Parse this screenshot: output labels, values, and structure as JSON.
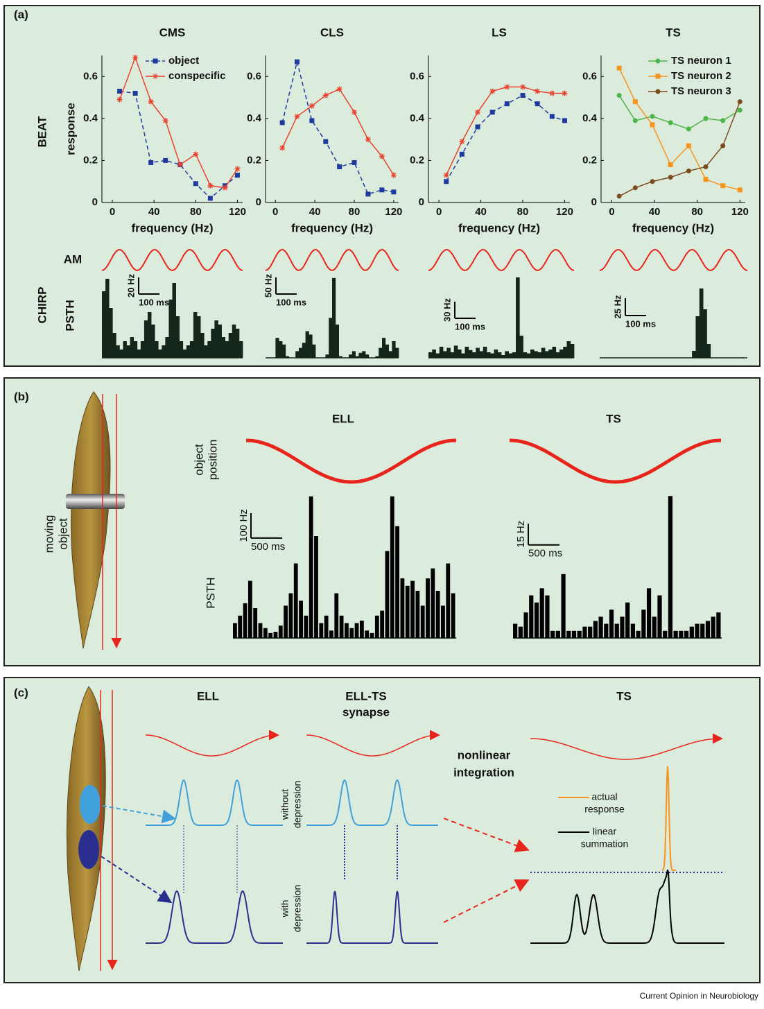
{
  "panels": {
    "a": {
      "label": "(a)",
      "beat": "BEAT",
      "chirp": "CHIRP",
      "am": "AM",
      "psth": "PSTH"
    },
    "b": {
      "label": "(b)",
      "moving_object": [
        "moving",
        "object"
      ],
      "titles": [
        "ELL",
        "TS"
      ],
      "object_position": [
        "object",
        "position"
      ],
      "psth": "PSTH"
    },
    "c": {
      "label": "(c)",
      "ell": "ELL",
      "ell_ts": [
        "ELL-TS",
        "synapse"
      ],
      "ts": "TS",
      "nonlinear": [
        "nonlinear",
        "integration"
      ],
      "without_depression": [
        "without",
        "depression"
      ],
      "with_depression": [
        "with",
        "depression"
      ],
      "actual_response": [
        "actual",
        "response"
      ],
      "linear_summation": [
        "linear",
        "summation"
      ]
    },
    "footer": "Current Opinion in Neurobiology"
  },
  "chart_data": [
    {
      "type": "line",
      "title": "CMS",
      "xlabel": "frequency (Hz)",
      "ylabel": "response",
      "legend": "upper right",
      "x": [
        7,
        22,
        37,
        51,
        65,
        80,
        94,
        108,
        120
      ],
      "xlim": [
        -10,
        125
      ],
      "xticks": [
        0,
        40,
        80,
        120
      ],
      "ylim": [
        0,
        0.7
      ],
      "yticks": [
        0,
        0.2,
        0.4,
        0.6
      ],
      "series": [
        {
          "name": "object",
          "color": "#1f3a9e",
          "marker": "square",
          "dashed": true,
          "values": [
            0.53,
            0.52,
            0.19,
            0.2,
            0.18,
            0.09,
            0.02,
            0.08,
            0.13
          ]
        },
        {
          "name": "conspecific",
          "color": "#e8432e",
          "marker": "star",
          "dashed": false,
          "values": [
            0.49,
            0.69,
            0.48,
            0.39,
            0.18,
            0.23,
            0.08,
            0.07,
            0.16
          ]
        }
      ]
    },
    {
      "type": "line",
      "title": "CLS",
      "xlabel": "frequency (Hz)",
      "x": [
        7,
        22,
        37,
        51,
        65,
        80,
        94,
        108,
        120
      ],
      "xlim": [
        -10,
        125
      ],
      "xticks": [
        0,
        40,
        80,
        120
      ],
      "ylim": [
        0,
        0.7
      ],
      "yticks": [
        0,
        0.2,
        0.4,
        0.6
      ],
      "series": [
        {
          "color": "#1f3a9e",
          "marker": "square",
          "dashed": true,
          "values": [
            0.38,
            0.67,
            0.39,
            0.29,
            0.17,
            0.19,
            0.04,
            0.06,
            0.05
          ]
        },
        {
          "color": "#e8432e",
          "marker": "star",
          "dashed": false,
          "values": [
            0.26,
            0.41,
            0.46,
            0.51,
            0.54,
            0.43,
            0.3,
            0.22,
            0.13
          ]
        }
      ]
    },
    {
      "type": "line",
      "title": "LS",
      "xlabel": "frequency (Hz)",
      "x": [
        7,
        22,
        37,
        51,
        65,
        80,
        94,
        108,
        120
      ],
      "xlim": [
        -10,
        125
      ],
      "xticks": [
        0,
        40,
        80,
        120
      ],
      "ylim": [
        0,
        0.7
      ],
      "yticks": [
        0,
        0.2,
        0.4,
        0.6
      ],
      "series": [
        {
          "color": "#1f3a9e",
          "marker": "square",
          "dashed": true,
          "values": [
            0.1,
            0.23,
            0.36,
            0.43,
            0.47,
            0.51,
            0.47,
            0.41,
            0.39
          ]
        },
        {
          "color": "#e8432e",
          "marker": "star",
          "dashed": false,
          "values": [
            0.13,
            0.29,
            0.43,
            0.53,
            0.55,
            0.55,
            0.53,
            0.52,
            0.52
          ]
        }
      ]
    },
    {
      "type": "line",
      "title": "TS",
      "xlabel": "frequency (Hz)",
      "legend": "upper right",
      "x": [
        7,
        22,
        38,
        55,
        72,
        88,
        104,
        120
      ],
      "xlim": [
        -10,
        125
      ],
      "xticks": [
        0,
        40,
        80,
        120
      ],
      "ylim": [
        0,
        0.7
      ],
      "yticks": [
        0,
        0.2,
        0.4,
        0.6
      ],
      "series": [
        {
          "name": "TS neuron 1",
          "color": "#4bb549",
          "marker": "circle",
          "dashed": false,
          "values": [
            0.51,
            0.39,
            0.41,
            0.38,
            0.35,
            0.4,
            0.39,
            0.44
          ]
        },
        {
          "name": "TS neuron 2",
          "color": "#f7941d",
          "marker": "square",
          "dashed": false,
          "values": [
            0.64,
            0.48,
            0.37,
            0.18,
            0.27,
            0.11,
            0.08,
            0.06
          ]
        },
        {
          "name": "TS neuron 3",
          "color": "#7b4a1e",
          "marker": "circle",
          "dashed": false,
          "values": [
            0.03,
            0.07,
            0.1,
            0.12,
            0.15,
            0.17,
            0.27,
            0.48
          ]
        }
      ]
    },
    {
      "type": "psth",
      "color": "#15261b",
      "ylim": [
        0,
        100
      ],
      "scale_bar": {
        "y": 20,
        "y_label": "20 Hz",
        "x_label": "100 ms"
      },
      "values": [
        80,
        95,
        60,
        30,
        15,
        10,
        20,
        15,
        25,
        20,
        10,
        20,
        45,
        55,
        40,
        20,
        10,
        15,
        25,
        70,
        90,
        50,
        20,
        10,
        15,
        20,
        55,
        50,
        30,
        15,
        20,
        35,
        45,
        40,
        25,
        20,
        30,
        40,
        35,
        20
      ]
    },
    {
      "type": "psth",
      "color": "#15261b",
      "ylim": [
        0,
        250
      ],
      "scale_bar": {
        "y": 50,
        "y_label": "50 Hz",
        "x_label": "100 ms"
      },
      "values": [
        0,
        0,
        0,
        60,
        50,
        40,
        5,
        0,
        0,
        20,
        30,
        45,
        80,
        70,
        40,
        0,
        0,
        0,
        10,
        120,
        240,
        100,
        5,
        0,
        0,
        10,
        20,
        5,
        15,
        20,
        10,
        0,
        0,
        5,
        30,
        60,
        40,
        20,
        50,
        30
      ]
    },
    {
      "type": "psth",
      "color": "#15261b",
      "ylim": [
        0,
        150
      ],
      "scale_bar": {
        "y": 30,
        "y_label": "30 Hz",
        "x_label": "100 ms"
      },
      "values": [
        10,
        15,
        8,
        20,
        12,
        18,
        10,
        22,
        15,
        8,
        20,
        14,
        10,
        18,
        12,
        20,
        10,
        8,
        15,
        10,
        5,
        12,
        8,
        10,
        145,
        40,
        10,
        8,
        15,
        12,
        10,
        18,
        12,
        15,
        20,
        10,
        15,
        20,
        30,
        25
      ]
    },
    {
      "type": "psth",
      "color": "#15261b",
      "ylim": [
        0,
        120
      ],
      "scale_bar": {
        "y": 25,
        "y_label": "25 Hz",
        "x_label": "100 ms"
      },
      "values": [
        0,
        0,
        0,
        0,
        0,
        0,
        0,
        0,
        0,
        0,
        0,
        0,
        0,
        0,
        0,
        0,
        0,
        0,
        0,
        0,
        0,
        0,
        0,
        0,
        0,
        10,
        60,
        100,
        70,
        20,
        0,
        0,
        0,
        0,
        0,
        0,
        0,
        0,
        0,
        0
      ]
    },
    {
      "type": "psth",
      "color": "#000000",
      "gap": true,
      "ylim": [
        0,
        600
      ],
      "scale_bar": {
        "y": 100,
        "y_label": "100 Hz",
        "x_label": "500 ms"
      },
      "values": [
        60,
        90,
        140,
        230,
        120,
        60,
        40,
        20,
        25,
        50,
        130,
        180,
        300,
        150,
        90,
        570,
        410,
        60,
        90,
        30,
        180,
        90,
        60,
        40,
        60,
        70,
        30,
        20,
        90,
        110,
        350,
        570,
        450,
        240,
        210,
        230,
        190,
        130,
        240,
        280,
        190,
        130,
        300,
        180
      ]
    },
    {
      "type": "psth",
      "color": "#000000",
      "gap": true,
      "ylim": [
        0,
        105
      ],
      "scale_bar": {
        "y": 15,
        "y_label": "15 Hz",
        "x_label": "500 ms"
      },
      "values": [
        10,
        8,
        18,
        30,
        25,
        35,
        30,
        5,
        5,
        45,
        5,
        5,
        5,
        8,
        8,
        12,
        15,
        10,
        20,
        10,
        15,
        25,
        10,
        5,
        20,
        35,
        15,
        30,
        5,
        100,
        5,
        5,
        5,
        8,
        10,
        10,
        12,
        15,
        18
      ]
    }
  ]
}
